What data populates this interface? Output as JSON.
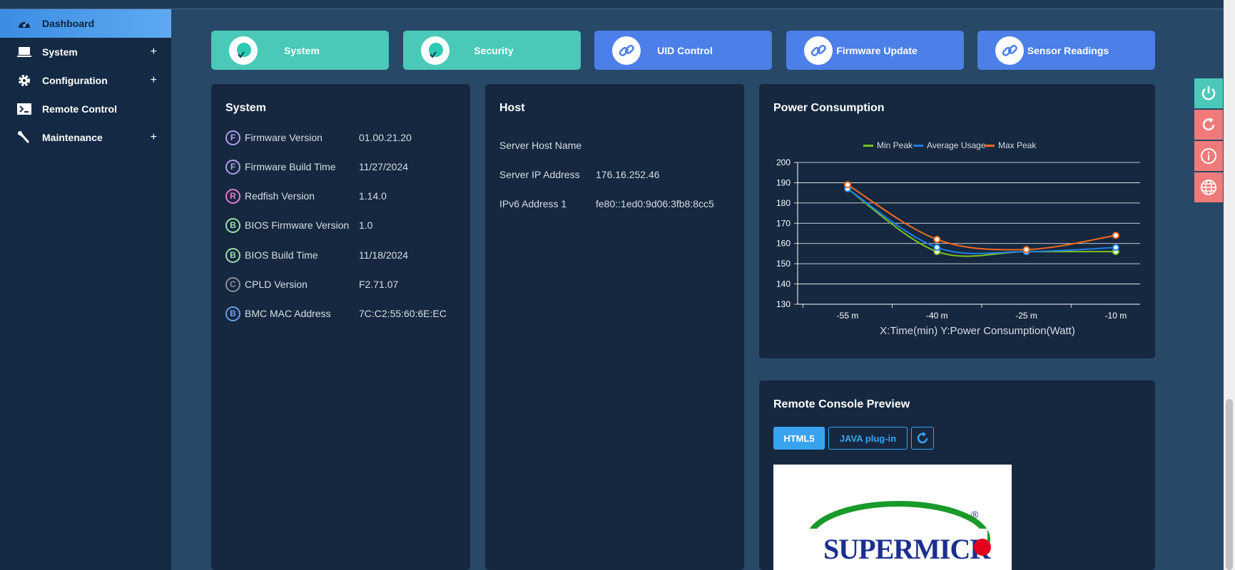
{
  "sidebar": {
    "items": [
      {
        "label": "Dashboard",
        "icon": "dashboard-gauge-icon",
        "active": true,
        "expandable": false
      },
      {
        "label": "System",
        "icon": "laptop-icon",
        "active": false,
        "expandable": true
      },
      {
        "label": "Configuration",
        "icon": "gear-icon",
        "active": false,
        "expandable": true
      },
      {
        "label": "Remote Control",
        "icon": "terminal-icon",
        "active": false,
        "expandable": false
      },
      {
        "label": "Maintenance",
        "icon": "wrench-icon",
        "active": false,
        "expandable": true
      }
    ],
    "plus": "+"
  },
  "quick": [
    {
      "label": "System",
      "color": "#4ac9b9"
    },
    {
      "label": "Security",
      "color": "#4ac9b9"
    },
    {
      "label": "UID Control",
      "color": "#4c7fe8"
    },
    {
      "label": "Firmware Update",
      "color": "#4c7fe8"
    },
    {
      "label": "Sensor Readings",
      "color": "#4c7fe8"
    }
  ],
  "system_card": {
    "title": "System",
    "rows": [
      {
        "badge": "F",
        "badge_color": "#b59cf0",
        "label": "Firmware Version",
        "value": "01.00.21.20"
      },
      {
        "badge": "F",
        "badge_color": "#b59cf0",
        "label": "Firmware Build Time",
        "value": "11/27/2024"
      },
      {
        "badge": "R",
        "badge_color": "#e57bd2",
        "label": "Redfish Version",
        "value": "1.14.0"
      },
      {
        "badge": "B",
        "badge_color": "#9be0a8",
        "label": "BIOS Firmware Version",
        "value": "1.0"
      },
      {
        "badge": "B",
        "badge_color": "#9be0a8",
        "label": "BIOS Build Time",
        "value": "11/18/2024"
      },
      {
        "badge": "C",
        "badge_color": "#8a8f96",
        "label": "CPLD Version",
        "value": "F2.71.07"
      },
      {
        "badge": "B",
        "badge_color": "#6aa0f0",
        "label": "BMC MAC Address",
        "value": "7C:C2:55:60:6E:EC"
      }
    ]
  },
  "host_card": {
    "title": "Host",
    "rows": [
      {
        "label": "Server Host Name",
        "value": ""
      },
      {
        "label": "Server IP Address",
        "value": "176.16.252.46"
      },
      {
        "label": "IPv6 Address 1",
        "value": "fe80::1ed0:9d06:3fb8:8cc5"
      }
    ]
  },
  "power_card": {
    "title": "Power Consumption"
  },
  "chart_data": {
    "type": "line",
    "categories": [
      "-55 m",
      "-40 m",
      "-25 m",
      "-10 m"
    ],
    "series": [
      {
        "name": "Min Peak",
        "color": "#7cc11c",
        "values": [
          187,
          156,
          156,
          156
        ]
      },
      {
        "name": "Average Usage",
        "color": "#1f7ee6",
        "values": [
          187,
          158,
          156,
          158
        ]
      },
      {
        "name": "Max Peak",
        "color": "#f26a21",
        "values": [
          189,
          162,
          157,
          164
        ]
      }
    ],
    "yticks": [
      130,
      140,
      150,
      160,
      170,
      180,
      190,
      200
    ],
    "ylim": [
      130,
      200
    ],
    "xlabel": "X:Time(min) Y:Power Consumption(Watt)",
    "grid": true,
    "legend": "top-center"
  },
  "console_card": {
    "title": "Remote Console Preview",
    "html5_label": "HTML5",
    "java_label": "JAVA plug-in",
    "logo_text": "SUPERMICR",
    "registered": "®"
  },
  "actions": [
    {
      "name": "power-icon",
      "color": "#4ac9b9"
    },
    {
      "name": "reset-icon",
      "color": "#f07a7a"
    },
    {
      "name": "info-icon",
      "color": "#f07a7a"
    },
    {
      "name": "globe-icon",
      "color": "#f07a7a"
    }
  ]
}
